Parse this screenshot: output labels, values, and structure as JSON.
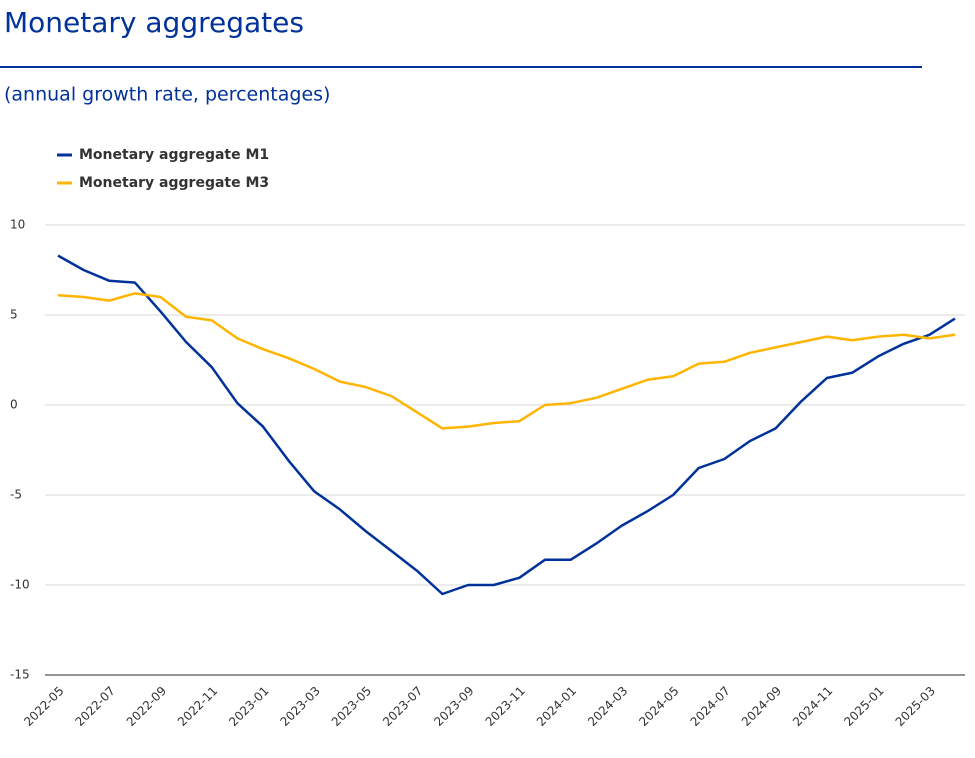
{
  "chart_data": {
    "type": "line",
    "title": "Monetary aggregates",
    "subtitle": "(annual growth rate, percentages)",
    "categories": [
      "2022-05",
      null,
      "2022-07",
      null,
      "2022-09",
      null,
      "2022-11",
      null,
      "2023-01",
      null,
      "2023-03",
      null,
      "2023-05",
      null,
      "2023-07",
      null,
      "2023-09",
      null,
      "2023-11",
      null,
      "2024-01",
      null,
      "2024-03",
      null,
      "2024-05",
      null,
      "2024-07",
      null,
      "2024-09",
      null,
      "2024-11",
      null,
      "2025-01",
      null,
      "2025-03",
      null
    ],
    "series": [
      {
        "name": "Monetary aggregate M1",
        "color": "#003299",
        "values": [
          8.3,
          7.5,
          6.9,
          6.8,
          5.2,
          3.5,
          2.1,
          0.1,
          -1.2,
          -3.1,
          -4.8,
          -5.8,
          -7.0,
          -8.1,
          -9.2,
          -10.5,
          -10.0,
          -10.0,
          -9.6,
          -8.6,
          -8.6,
          -7.7,
          -6.7,
          -5.9,
          -5.0,
          -3.5,
          -3.0,
          -2.0,
          -1.3,
          0.2,
          1.5,
          1.8,
          2.7,
          3.4,
          3.9,
          4.8
        ]
      },
      {
        "name": "Monetary aggregate M3",
        "color": "#ffb400",
        "values": [
          6.1,
          6.0,
          5.8,
          6.2,
          6.0,
          4.9,
          4.7,
          3.7,
          3.1,
          2.6,
          2.0,
          1.3,
          1.0,
          0.5,
          -0.4,
          -1.3,
          -1.2,
          -1.0,
          -0.9,
          0.0,
          0.1,
          0.4,
          0.9,
          1.4,
          1.6,
          2.3,
          2.4,
          2.9,
          3.2,
          3.5,
          3.8,
          3.6,
          3.8,
          3.9,
          3.7,
          3.9
        ]
      }
    ],
    "ylim": [
      -15,
      10
    ],
    "yticks": [
      10,
      5,
      0,
      -5,
      -10,
      -15
    ],
    "grid": true,
    "legend": "top-left"
  }
}
